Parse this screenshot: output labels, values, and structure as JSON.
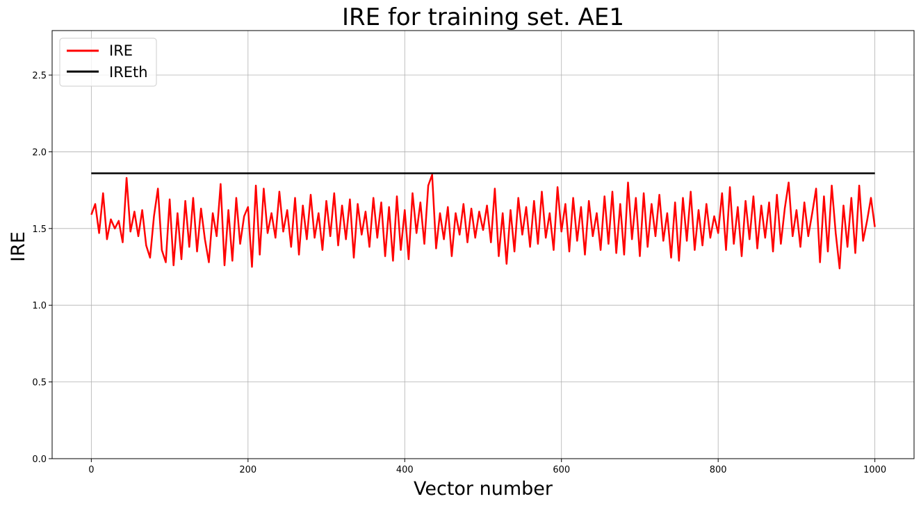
{
  "chart_data": {
    "type": "line",
    "title": "IRE for training set. AE1",
    "xlabel": "Vector number",
    "ylabel": "IRE",
    "xlim": [
      -50,
      1050
    ],
    "ylim": [
      0,
      2.79
    ],
    "xticks": [
      0,
      200,
      400,
      600,
      800,
      1000
    ],
    "xtick_labels": [
      "0",
      "200",
      "400",
      "600",
      "800",
      "1000"
    ],
    "yticks": [
      0,
      0.5,
      1.0,
      1.5,
      2.0,
      2.5
    ],
    "ytick_labels": [
      "0.0",
      "0.5",
      "1.0",
      "1.5",
      "2.0",
      "2.5"
    ],
    "grid": true,
    "legend_position": "top-left",
    "series": [
      {
        "name": "IRE",
        "color": "#ff0000",
        "x_start": 0,
        "x_step": 5,
        "values": [
          1.59,
          1.66,
          1.47,
          1.73,
          1.43,
          1.56,
          1.5,
          1.55,
          1.41,
          1.83,
          1.48,
          1.61,
          1.45,
          1.62,
          1.39,
          1.31,
          1.58,
          1.76,
          1.36,
          1.28,
          1.69,
          1.26,
          1.6,
          1.3,
          1.68,
          1.38,
          1.7,
          1.35,
          1.63,
          1.43,
          1.28,
          1.6,
          1.45,
          1.79,
          1.26,
          1.62,
          1.29,
          1.7,
          1.4,
          1.58,
          1.64,
          1.25,
          1.78,
          1.33,
          1.76,
          1.47,
          1.6,
          1.44,
          1.74,
          1.48,
          1.62,
          1.38,
          1.7,
          1.33,
          1.65,
          1.43,
          1.72,
          1.44,
          1.6,
          1.36,
          1.68,
          1.45,
          1.73,
          1.39,
          1.65,
          1.43,
          1.69,
          1.31,
          1.66,
          1.46,
          1.61,
          1.38,
          1.7,
          1.44,
          1.67,
          1.32,
          1.64,
          1.29,
          1.71,
          1.36,
          1.62,
          1.3,
          1.73,
          1.47,
          1.67,
          1.4,
          1.78,
          1.85,
          1.37,
          1.6,
          1.43,
          1.64,
          1.32,
          1.6,
          1.46,
          1.66,
          1.41,
          1.63,
          1.44,
          1.61,
          1.49,
          1.65,
          1.41,
          1.76,
          1.32,
          1.6,
          1.27,
          1.62,
          1.35,
          1.7,
          1.46,
          1.64,
          1.38,
          1.68,
          1.4,
          1.74,
          1.44,
          1.6,
          1.36,
          1.77,
          1.48,
          1.66,
          1.35,
          1.7,
          1.42,
          1.64,
          1.33,
          1.68,
          1.45,
          1.6,
          1.36,
          1.71,
          1.4,
          1.74,
          1.34,
          1.66,
          1.33,
          1.8,
          1.43,
          1.7,
          1.32,
          1.73,
          1.38,
          1.66,
          1.45,
          1.72,
          1.42,
          1.6,
          1.31,
          1.67,
          1.29,
          1.7,
          1.42,
          1.74,
          1.36,
          1.62,
          1.39,
          1.66,
          1.44,
          1.58,
          1.47,
          1.73,
          1.36,
          1.77,
          1.4,
          1.64,
          1.32,
          1.68,
          1.43,
          1.71,
          1.37,
          1.65,
          1.44,
          1.67,
          1.35,
          1.72,
          1.4,
          1.63,
          1.8,
          1.45,
          1.62,
          1.38,
          1.67,
          1.45,
          1.6,
          1.76,
          1.28,
          1.71,
          1.35,
          1.78,
          1.47,
          1.24,
          1.65,
          1.38,
          1.7,
          1.34,
          1.78,
          1.42,
          1.55,
          1.7,
          1.51
        ]
      },
      {
        "name": "IREth",
        "color": "#000000",
        "x": [
          0,
          1000
        ],
        "values": [
          1.86,
          1.86
        ]
      }
    ]
  }
}
